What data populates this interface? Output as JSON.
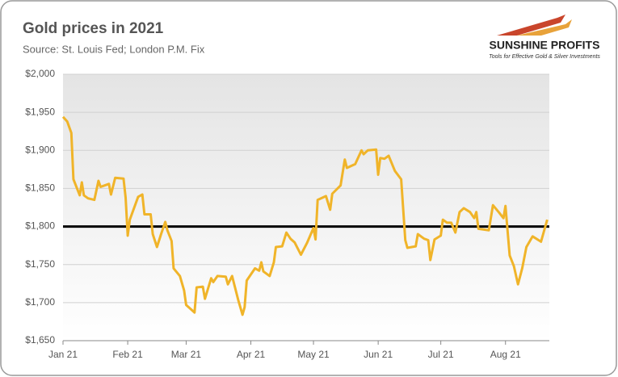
{
  "chart_data": {
    "type": "line",
    "title": "Gold prices in 2021",
    "subtitle": "Source: St. Louis Fed; London P.M. Fix",
    "logo": {
      "name": "SUNSHINE PROFITS",
      "tagline": "Tools for Effective Gold & Silver Investments"
    },
    "x": [
      0,
      2,
      4,
      5,
      7,
      8,
      9,
      10,
      12,
      15,
      17,
      18,
      22,
      23,
      25,
      29,
      30,
      31,
      32,
      36,
      38,
      39,
      42,
      43,
      45,
      47,
      49,
      50,
      52,
      53,
      56,
      58,
      59,
      63,
      64,
      67,
      68,
      71,
      72,
      74,
      78,
      79,
      81,
      84,
      86,
      87,
      88,
      90,
      92,
      94,
      95,
      96,
      99,
      101,
      102,
      105,
      107,
      109,
      111,
      114,
      117,
      120,
      121,
      122,
      126,
      128,
      129,
      133,
      135,
      136,
      140,
      143,
      144,
      146,
      150,
      151,
      152,
      154,
      156,
      159,
      162,
      164,
      165,
      169,
      170,
      173,
      175,
      176,
      178,
      181,
      182,
      184,
      186,
      188,
      190,
      192,
      195,
      197,
      198,
      199,
      204,
      206,
      209,
      211,
      212,
      214,
      216,
      218,
      220,
      222,
      225,
      229,
      232
    ],
    "series": [
      {
        "name": "Gold price",
        "color": "#f0b429",
        "values": [
          1944,
          1938,
          1923,
          1862,
          1848,
          1841,
          1858,
          1841,
          1837,
          1835,
          1860,
          1852,
          1856,
          1842,
          1864,
          1863,
          1838,
          1788,
          1809,
          1839,
          1842,
          1816,
          1816,
          1790,
          1773,
          1790,
          1806,
          1795,
          1781,
          1745,
          1735,
          1716,
          1697,
          1687,
          1720,
          1721,
          1705,
          1732,
          1727,
          1735,
          1734,
          1724,
          1735,
          1703,
          1684,
          1694,
          1729,
          1737,
          1745,
          1742,
          1753,
          1741,
          1735,
          1753,
          1773,
          1774,
          1792,
          1784,
          1779,
          1763,
          1779,
          1798,
          1783,
          1835,
          1840,
          1822,
          1843,
          1854,
          1888,
          1877,
          1882,
          1900,
          1895,
          1900,
          1901,
          1868,
          1890,
          1889,
          1893,
          1873,
          1862,
          1782,
          1772,
          1774,
          1790,
          1784,
          1782,
          1756,
          1783,
          1788,
          1809,
          1805,
          1805,
          1792,
          1819,
          1824,
          1819,
          1811,
          1819,
          1797,
          1795,
          1828,
          1818,
          1811,
          1827,
          1762,
          1748,
          1724,
          1745,
          1773,
          1787,
          1780,
          1809
        ]
      }
    ],
    "xlim": [
      0,
      233
    ],
    "xticks": [
      {
        "value": 0,
        "label": "Jan 21"
      },
      {
        "value": 31,
        "label": "Feb 21"
      },
      {
        "value": 59,
        "label": "Mar 21"
      },
      {
        "value": 90,
        "label": "Apr 21"
      },
      {
        "value": 120,
        "label": "May 21"
      },
      {
        "value": 151,
        "label": "Jun 21"
      },
      {
        "value": 181,
        "label": "Jul 21"
      },
      {
        "value": 212,
        "label": "Aug 21"
      }
    ],
    "ylim": [
      1650,
      2000
    ],
    "yticks": [
      {
        "value": 1650,
        "label": "$1,650"
      },
      {
        "value": 1700,
        "label": "$1,700"
      },
      {
        "value": 1750,
        "label": "$1,750"
      },
      {
        "value": 1800,
        "label": "$1,800"
      },
      {
        "value": 1850,
        "label": "$1,850"
      },
      {
        "value": 1900,
        "label": "$1,900"
      },
      {
        "value": 1950,
        "label": "$1,950"
      },
      {
        "value": 2000,
        "label": "$2,000"
      }
    ],
    "reference_line": 1800,
    "grid": true
  }
}
